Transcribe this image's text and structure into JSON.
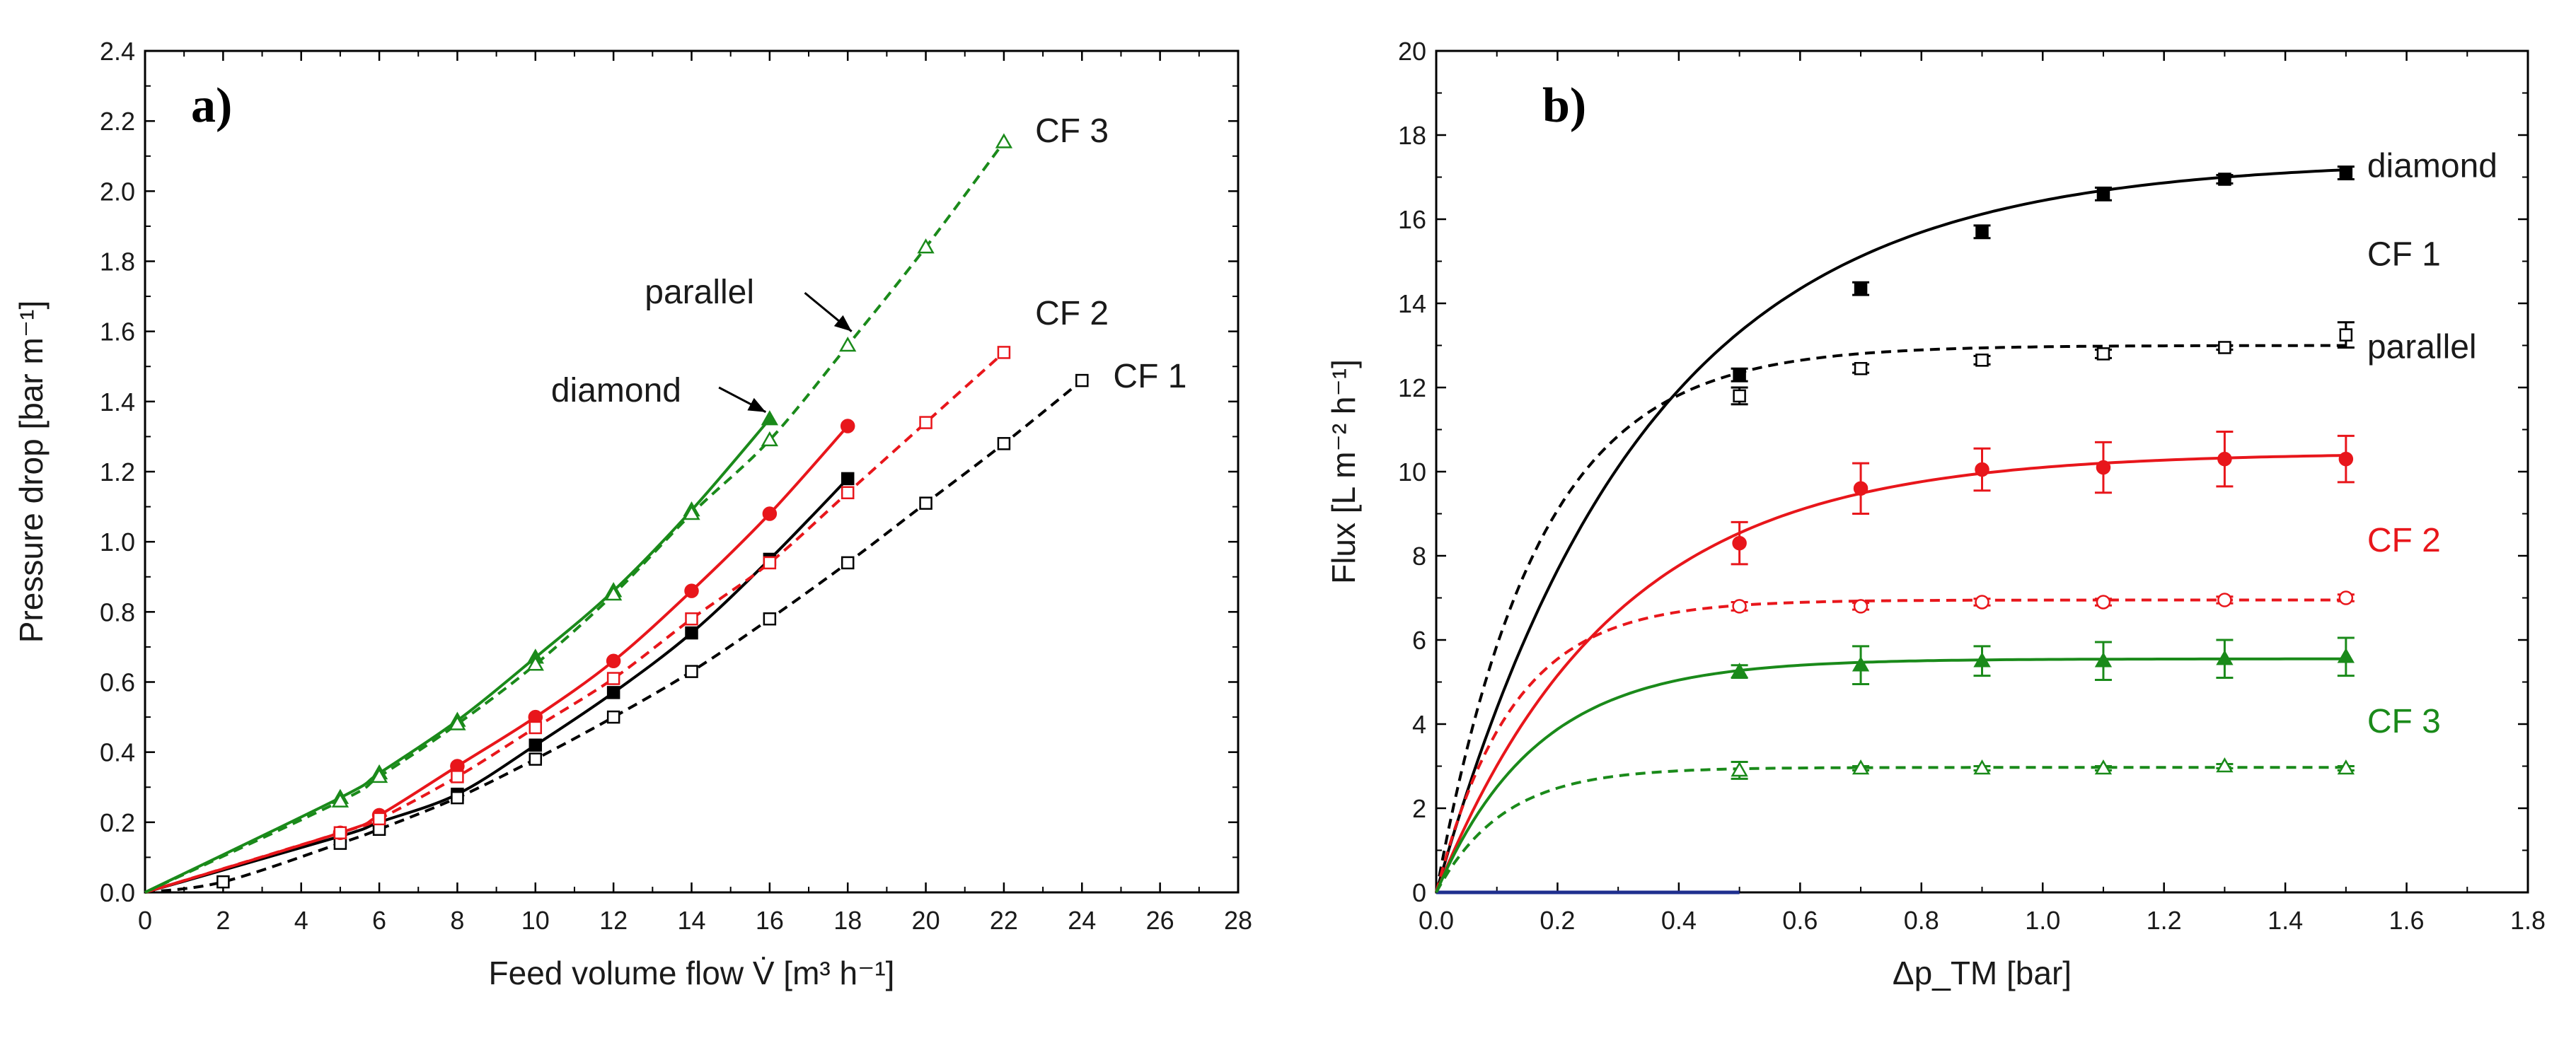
{
  "chart_data": [
    {
      "type": "line",
      "panel": "a)",
      "xlabel": "Feed volume flow V̇ [m³ h⁻¹]",
      "ylabel": "Pressure drop [bar m⁻¹]",
      "xlim": [
        0,
        28
      ],
      "ylim": [
        0,
        2.4
      ],
      "xticks": [
        "0",
        "2",
        "4",
        "6",
        "8",
        "10",
        "12",
        "14",
        "16",
        "18",
        "20",
        "22",
        "24",
        "26",
        "28"
      ],
      "yticks": [
        "0.0",
        "0.2",
        "0.4",
        "0.6",
        "0.8",
        "1.0",
        "1.2",
        "1.4",
        "1.6",
        "1.8",
        "2.0",
        "2.2",
        "2.4"
      ],
      "series": [
        {
          "name": "CF 1 diamond",
          "color": "#000000",
          "marker": "square-filled",
          "dash": false,
          "x": [
            0,
            5,
            6,
            8,
            10,
            12,
            14,
            16,
            18
          ],
          "y": [
            0,
            0.16,
            0.2,
            0.28,
            0.42,
            0.57,
            0.74,
            0.95,
            1.18
          ]
        },
        {
          "name": "CF 1 parallel",
          "color": "#000000",
          "marker": "square-open",
          "dash": true,
          "x": [
            0,
            2,
            5,
            6,
            8,
            10,
            12,
            14,
            16,
            18,
            20,
            22,
            24
          ],
          "y": [
            0,
            0.03,
            0.14,
            0.18,
            0.27,
            0.38,
            0.5,
            0.63,
            0.78,
            0.94,
            1.11,
            1.28,
            1.46
          ]
        },
        {
          "name": "CF 2 diamond",
          "color": "#e8161b",
          "marker": "circle-filled",
          "dash": false,
          "x": [
            0,
            5,
            6,
            8,
            10,
            12,
            14,
            16,
            18
          ],
          "y": [
            0,
            0.17,
            0.22,
            0.36,
            0.5,
            0.66,
            0.86,
            1.08,
            1.33
          ]
        },
        {
          "name": "CF 2 parallel",
          "color": "#e8161b",
          "marker": "square-open",
          "dash": true,
          "x": [
            0,
            5,
            6,
            8,
            10,
            12,
            14,
            16,
            18,
            20,
            22
          ],
          "y": [
            0,
            0.17,
            0.21,
            0.33,
            0.47,
            0.61,
            0.78,
            0.94,
            1.14,
            1.34,
            1.54
          ]
        },
        {
          "name": "CF 3 diamond",
          "color": "#1a8a1a",
          "marker": "triangle-filled",
          "dash": false,
          "x": [
            0,
            5,
            6,
            8,
            10,
            12,
            14,
            16
          ],
          "y": [
            0,
            0.27,
            0.34,
            0.49,
            0.67,
            0.86,
            1.09,
            1.35
          ]
        },
        {
          "name": "CF 3 parallel",
          "color": "#1a8a1a",
          "marker": "triangle-open",
          "dash": true,
          "x": [
            0,
            5,
            6,
            8,
            10,
            12,
            14,
            16,
            18,
            20,
            22
          ],
          "y": [
            0,
            0.26,
            0.33,
            0.48,
            0.65,
            0.85,
            1.08,
            1.29,
            1.56,
            1.84,
            2.14
          ]
        }
      ],
      "labels": [
        {
          "text": "CF 3",
          "color": "#1a1a1a",
          "x": 22.8,
          "y": 2.14
        },
        {
          "text": "CF 2",
          "color": "#1a1a1a",
          "x": 22.8,
          "y": 1.62
        },
        {
          "text": "CF 1",
          "color": "#1a1a1a",
          "x": 24.8,
          "y": 1.44
        },
        {
          "text": "parallel",
          "color": "#1a1a1a",
          "x": 12.8,
          "y": 1.68
        },
        {
          "text": "diamond",
          "color": "#1a1a1a",
          "x": 10.4,
          "y": 1.4
        }
      ],
      "arrows": [
        {
          "from": [
            16.9,
            1.71
          ],
          "to": [
            18.1,
            1.6
          ],
          "label": "parallel"
        },
        {
          "from": [
            14.7,
            1.44
          ],
          "to": [
            15.9,
            1.37
          ],
          "label": "diamond"
        }
      ]
    },
    {
      "type": "line",
      "panel": "b)",
      "xlabel": "Δp_TM [bar]",
      "ylabel": "Flux [L m⁻² h⁻¹]",
      "xlim": [
        0,
        1.8
      ],
      "ylim": [
        0,
        20
      ],
      "xticks": [
        "0.0",
        "0.2",
        "0.4",
        "0.6",
        "0.8",
        "1.0",
        "1.2",
        "1.4",
        "1.6",
        "1.8"
      ],
      "yticks": [
        "0",
        "2",
        "4",
        "6",
        "8",
        "10",
        "12",
        "14",
        "16",
        "18",
        "20"
      ],
      "series": [
        {
          "name": "CF 1 diamond",
          "color": "#000000",
          "marker": "square-filled",
          "dash": false,
          "x": [
            0.5,
            0.7,
            0.9,
            1.1,
            1.3,
            1.5
          ],
          "y": [
            12.3,
            14.35,
            15.7,
            16.6,
            16.95,
            17.1
          ],
          "err": [
            0.15,
            0.15,
            0.15,
            0.15,
            0.1,
            0.15
          ],
          "curve": {
            "a": 17.4,
            "k": 2.9
          }
        },
        {
          "name": "CF 1 parallel",
          "color": "#000000",
          "marker": "square-open",
          "dash": true,
          "x": [
            0.5,
            0.7,
            0.9,
            1.1,
            1.3,
            1.5
          ],
          "y": [
            11.8,
            12.45,
            12.65,
            12.8,
            12.95,
            13.25
          ],
          "err": [
            0.2,
            0.1,
            0.1,
            0.1,
            0.05,
            0.3
          ],
          "curve": {
            "a": 13.0,
            "k": 6.0
          }
        },
        {
          "name": "CF 2 diamond",
          "color": "#e8161b",
          "marker": "circle-filled",
          "dash": false,
          "x": [
            0.5,
            0.7,
            0.9,
            1.1,
            1.3,
            1.5
          ],
          "y": [
            8.3,
            9.6,
            10.05,
            10.1,
            10.3,
            10.3
          ],
          "err": [
            0.5,
            0.6,
            0.5,
            0.6,
            0.65,
            0.55
          ],
          "curve": {
            "a": 10.45,
            "k": 3.4
          }
        },
        {
          "name": "CF 2 parallel",
          "color": "#e8161b",
          "marker": "circle-open",
          "dash": true,
          "x": [
            0.5,
            0.7,
            0.9,
            1.1,
            1.3,
            1.5
          ],
          "y": [
            6.8,
            6.8,
            6.9,
            6.9,
            6.95,
            7.0
          ],
          "err": [
            0.1,
            0.08,
            0.08,
            0.08,
            0.08,
            0.08
          ],
          "curve": {
            "a": 6.95,
            "k": 8.0
          }
        },
        {
          "name": "CF 3 diamond",
          "color": "#1a8a1a",
          "marker": "triangle-filled",
          "dash": false,
          "x": [
            0.5,
            0.7,
            0.9,
            1.1,
            1.3,
            1.5
          ],
          "y": [
            5.25,
            5.4,
            5.5,
            5.5,
            5.55,
            5.6
          ],
          "err": [
            0.15,
            0.45,
            0.35,
            0.45,
            0.45,
            0.45
          ],
          "curve": {
            "a": 5.55,
            "k": 6.0
          }
        },
        {
          "name": "CF 3 parallel",
          "color": "#1a8a1a",
          "marker": "triangle-open",
          "dash": true,
          "x": [
            0.5,
            0.7,
            0.9,
            1.1,
            1.3,
            1.5
          ],
          "y": [
            2.9,
            2.95,
            2.95,
            2.95,
            3.0,
            2.95
          ],
          "err": [
            0.2,
            0.05,
            0.05,
            0.05,
            0.05,
            0.05
          ],
          "curve": {
            "a": 2.97,
            "k": 9.0
          }
        }
      ],
      "baseline": {
        "color": "#1f2f8f",
        "x": [
          0,
          0.5
        ],
        "y": [
          0,
          0
        ]
      },
      "labels": [
        {
          "text": "diamond",
          "color": "#1a1a1a",
          "x": 1.535,
          "y": 17.0
        },
        {
          "text": "CF 1",
          "color": "#1a1a1a",
          "x": 1.535,
          "y": 14.9
        },
        {
          "text": "parallel",
          "color": "#1a1a1a",
          "x": 1.535,
          "y": 12.7
        },
        {
          "text": "CF 2",
          "color": "#e8161b",
          "x": 1.535,
          "y": 8.1
        },
        {
          "text": "CF 3",
          "color": "#1a8a1a",
          "x": 1.535,
          "y": 3.8
        }
      ]
    }
  ]
}
